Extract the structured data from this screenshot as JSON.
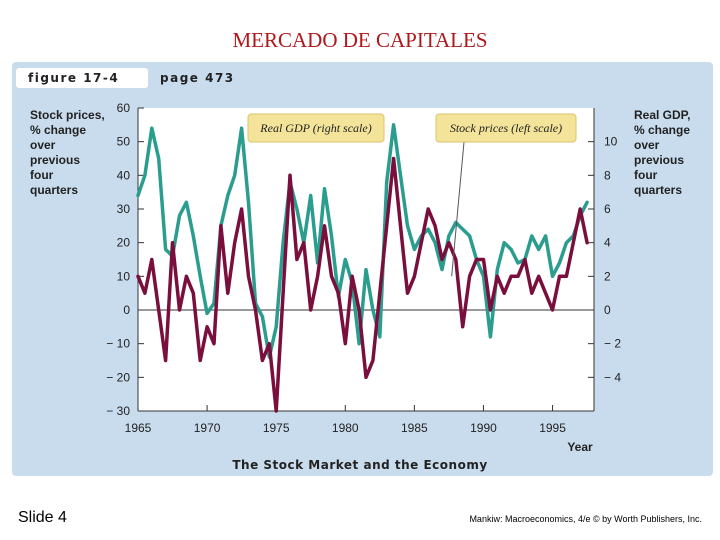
{
  "slide": {
    "title": "MERCADO DE CAPITALES",
    "number": "Slide 4",
    "credit": "Mankiw: Macroeconomics, 4/e © by Worth Publishers, Inc."
  },
  "figure": {
    "label": "figure 17-4",
    "page": "page 473",
    "caption": "The Stock Market and the Economy"
  },
  "chart_data": {
    "type": "line",
    "title": "The Stock Market and the Economy",
    "xlabel": "Year",
    "left_axis_label": "Stock prices,\n% change\nover\nprevious\nfour\nquarters",
    "right_axis_label": "Real GDP,\n% change\nover\nprevious\nfour\nquarters",
    "xlim": [
      1965,
      1998
    ],
    "x_ticks": [
      1965,
      1970,
      1975,
      1980,
      1985,
      1990,
      1995
    ],
    "left_ylim": [
      -30,
      60
    ],
    "left_ticks": [
      {
        "v": 60,
        "t": "60"
      },
      {
        "v": 50,
        "t": "50"
      },
      {
        "v": 40,
        "t": "40"
      },
      {
        "v": 30,
        "t": "30"
      },
      {
        "v": 20,
        "t": "20"
      },
      {
        "v": 10,
        "t": "10"
      },
      {
        "v": 0,
        "t": "0"
      },
      {
        "v": -10,
        "t": "− 10"
      },
      {
        "v": -20,
        "t": "− 20"
      },
      {
        "v": -30,
        "t": "− 30"
      }
    ],
    "right_ylim": [
      -6,
      12
    ],
    "right_ticks": [
      {
        "v": 10,
        "t": "10"
      },
      {
        "v": 8,
        "t": "8"
      },
      {
        "v": 6,
        "t": "6"
      },
      {
        "v": 4,
        "t": "4"
      },
      {
        "v": 2,
        "t": "2"
      },
      {
        "v": 0,
        "t": "0"
      },
      {
        "v": -2,
        "t": "− 2"
      },
      {
        "v": -4,
        "t": "− 4"
      }
    ],
    "annotations": [
      {
        "text": "Real GDP (right scale)",
        "series": "gdp"
      },
      {
        "text": "Stock prices (left scale)",
        "series": "stocks"
      }
    ],
    "series": [
      {
        "id": "stocks",
        "color": "#2a9d8f",
        "x": [
          1965.0,
          1965.5,
          1966.0,
          1966.5,
          1967.0,
          1967.5,
          1968.0,
          1968.5,
          1969.0,
          1969.5,
          1970.0,
          1970.5,
          1971.0,
          1971.5,
          1972.0,
          1972.5,
          1973.0,
          1973.5,
          1974.0,
          1974.5,
          1975.0,
          1975.5,
          1976.0,
          1976.5,
          1977.0,
          1977.5,
          1978.0,
          1978.5,
          1979.0,
          1979.5,
          1980.0,
          1980.5,
          1981.0,
          1981.5,
          1982.0,
          1982.5,
          1983.0,
          1983.5,
          1984.0,
          1984.5,
          1985.0,
          1985.5,
          1986.0,
          1986.5,
          1987.0,
          1987.5,
          1988.0,
          1988.5,
          1989.0,
          1989.5,
          1990.0,
          1990.5,
          1991.0,
          1991.5,
          1992.0,
          1992.5,
          1993.0,
          1993.5,
          1994.0,
          1994.5,
          1995.0,
          1995.5,
          1996.0,
          1996.5,
          1997.0,
          1997.5
        ],
        "y": [
          34,
          40,
          54,
          45,
          18,
          16,
          28,
          32,
          22,
          10,
          -1,
          2,
          25,
          34,
          40,
          54,
          32,
          2,
          -2,
          -14,
          -5,
          20,
          38,
          30,
          20,
          34,
          14,
          36,
          22,
          4,
          15,
          8,
          -10,
          12,
          0,
          -8,
          38,
          55,
          40,
          25,
          18,
          22,
          24,
          20,
          12,
          22,
          26,
          24,
          22,
          15,
          10,
          -8,
          12,
          20,
          18,
          14,
          15,
          22,
          18,
          22,
          10,
          14,
          20,
          22,
          28,
          32
        ]
      },
      {
        "id": "gdp",
        "color": "#7a0f3d",
        "x": [
          1965.0,
          1965.5,
          1966.0,
          1966.5,
          1967.0,
          1967.5,
          1968.0,
          1968.5,
          1969.0,
          1969.5,
          1970.0,
          1970.5,
          1971.0,
          1971.5,
          1972.0,
          1972.5,
          1973.0,
          1973.5,
          1974.0,
          1974.5,
          1975.0,
          1975.5,
          1976.0,
          1976.5,
          1977.0,
          1977.5,
          1978.0,
          1978.5,
          1979.0,
          1979.5,
          1980.0,
          1980.5,
          1981.0,
          1981.5,
          1982.0,
          1982.5,
          1983.0,
          1983.5,
          1984.0,
          1984.5,
          1985.0,
          1985.5,
          1986.0,
          1986.5,
          1987.0,
          1987.5,
          1988.0,
          1988.5,
          1989.0,
          1989.5,
          1990.0,
          1990.5,
          1991.0,
          1991.5,
          1992.0,
          1992.5,
          1993.0,
          1993.5,
          1994.0,
          1994.5,
          1995.0,
          1995.5,
          1996.0,
          1996.5,
          1997.0,
          1997.5
        ],
        "y": [
          2,
          1,
          3,
          0,
          -3,
          4,
          0,
          2,
          1,
          -3,
          -1,
          -2,
          5,
          1,
          4,
          6,
          2,
          0,
          -3,
          -2,
          -6,
          1,
          8,
          3,
          4,
          0,
          2,
          5,
          2,
          1,
          -2,
          2,
          0,
          -4,
          -3,
          1,
          5,
          9,
          5,
          1,
          2,
          4,
          6,
          5,
          3,
          4,
          3,
          -1,
          2,
          3,
          3,
          0,
          2,
          1,
          2,
          2,
          3,
          1,
          2,
          1,
          0,
          2,
          2,
          4,
          6,
          4
        ]
      }
    ]
  }
}
